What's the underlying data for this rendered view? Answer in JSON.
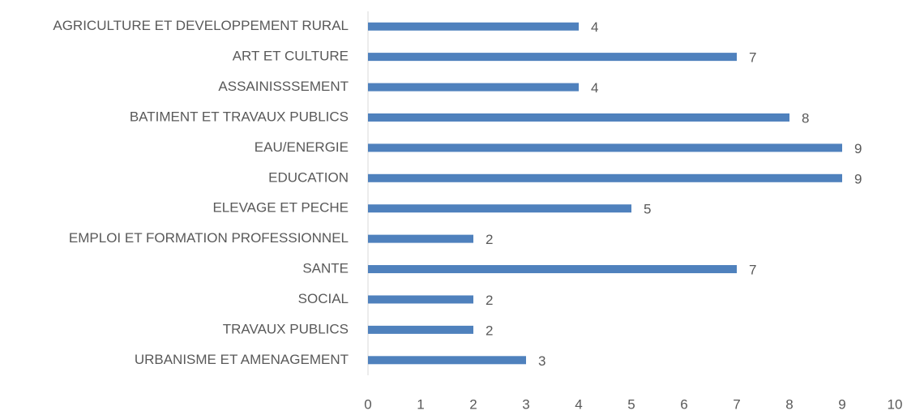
{
  "chart_data": {
    "type": "bar",
    "orientation": "horizontal",
    "categories": [
      "AGRICULTURE ET DEVELOPPEMENT RURAL",
      "ART ET CULTURE",
      "ASSAINISSSEMENT",
      "BATIMENT ET TRAVAUX PUBLICS",
      "EAU/ENERGIE",
      "EDUCATION",
      "ELEVAGE ET PECHE",
      "EMPLOI ET FORMATION PROFESSIONNEL",
      "SANTE",
      "SOCIAL",
      "TRAVAUX PUBLICS",
      "URBANISME ET AMENAGEMENT"
    ],
    "values": [
      4,
      7,
      4,
      8,
      9,
      9,
      5,
      2,
      7,
      2,
      2,
      3
    ],
    "color": "#4f81bd",
    "xlim": [
      0,
      10
    ],
    "xticks": [
      0,
      1,
      2,
      3,
      4,
      5,
      6,
      7,
      8,
      9,
      10
    ],
    "grid": false
  }
}
